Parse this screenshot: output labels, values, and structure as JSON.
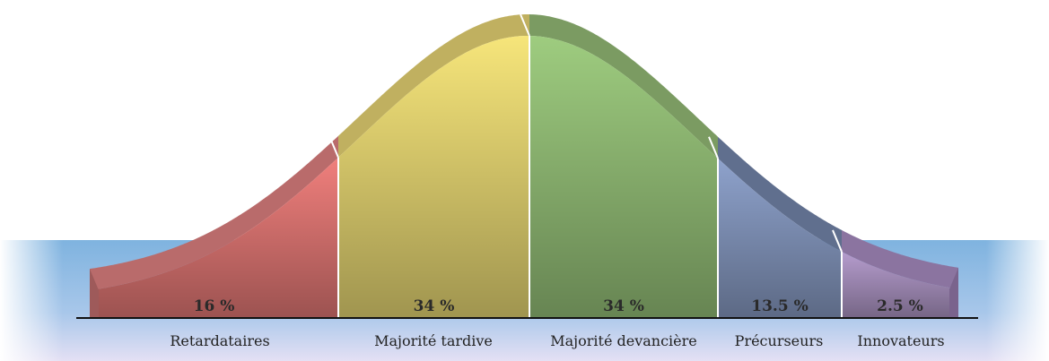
{
  "segments": [
    {
      "name": "Retardataires",
      "label": "16 %"
    },
    {
      "name": "Majorité tardive",
      "label": "34 %"
    },
    {
      "name": "Majorité devancière",
      "label": "34 %"
    },
    {
      "name": "Précurseurs",
      "label": "13.5 %"
    },
    {
      "name": "Innovateurs",
      "label": "2.5 %"
    }
  ]
}
